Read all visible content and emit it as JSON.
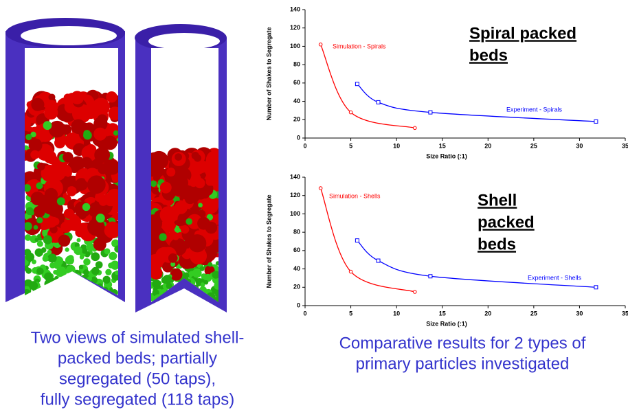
{
  "chart_data": [
    {
      "type": "line",
      "title": [
        "Spiral packed",
        "beds"
      ],
      "xlabel": "Size Ratio (:1)",
      "ylabel": "Number of Shakes to Segregate",
      "xlim": [
        0,
        35
      ],
      "xticks": [
        0,
        5,
        10,
        15,
        20,
        25,
        30,
        35
      ],
      "ylim": [
        0,
        140
      ],
      "yticks": [
        0,
        20,
        40,
        60,
        80,
        100,
        120,
        140
      ],
      "series": [
        {
          "name": "Simulation - Spirals",
          "color": "#ff0000",
          "x": [
            1.7,
            5,
            12
          ],
          "values": [
            102,
            28,
            11
          ]
        },
        {
          "name": "Experiment - Spirals",
          "color": "#0000ff",
          "x": [
            5.7,
            8,
            13.7,
            31.8
          ],
          "values": [
            59,
            39,
            28,
            18
          ]
        }
      ]
    },
    {
      "type": "line",
      "title": [
        "Shell",
        "packed",
        "beds"
      ],
      "xlabel": "Size Ratio (:1)",
      "ylabel": "Number of Shakes to Segregate",
      "xlim": [
        0,
        35
      ],
      "xticks": [
        0,
        5,
        10,
        15,
        20,
        25,
        30,
        35
      ],
      "ylim": [
        0,
        140
      ],
      "yticks": [
        0,
        20,
        40,
        60,
        80,
        100,
        120,
        140
      ],
      "series": [
        {
          "name": "Simulation - Shells",
          "color": "#ff0000",
          "x": [
            1.7,
            5,
            12
          ],
          "values": [
            128,
            37,
            15
          ]
        },
        {
          "name": "Experiment - Shells",
          "color": "#0000ff",
          "x": [
            5.7,
            8,
            13.7,
            31.8
          ],
          "values": [
            71,
            49,
            32,
            20
          ]
        }
      ]
    }
  ],
  "captions": {
    "left": [
      "Two views of simulated shell-",
      "packed beds; partially",
      "segregated (50 taps),",
      "fully segregated (118 taps)"
    ],
    "right": [
      "Comparative results for 2 types of",
      "primary particles investigated"
    ]
  }
}
